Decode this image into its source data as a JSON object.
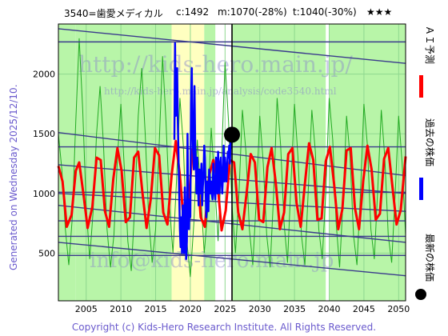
{
  "header": {
    "code_name": "3540=歯愛メディカル",
    "current": "c:1492",
    "mid": "m:1070(-28%)",
    "target": "t:1040(-30%)",
    "stars": "★★★"
  },
  "generated": "Generated on Wednesday 2025/12/10.",
  "copyright": "Copyright (c) Kids-Hero Research Institute. All Rights Reserved.",
  "watermarks": {
    "url": "http://kids-hero.main.jp/",
    "sub": "http://kids-hero.main.jp/analysis/code3540.html",
    "mail": "info@kids-hero.main.jp"
  },
  "legend": {
    "ai_forecast": "ＡＩ予測",
    "past_price": "過去の株価",
    "latest_price": "最新の株価"
  },
  "colors": {
    "ai_forecast": "#ff0000",
    "past_price": "#0000ff",
    "latest_price": "#000000",
    "green_line": "#22aa22",
    "band_line": "#3a3a8c",
    "zone_green": "#b8f5a8",
    "zone_yellow": "#ffffc0"
  },
  "chart_data": {
    "type": "line",
    "xlim": [
      2001.0,
      2051.0
    ],
    "ylim": [
      100,
      2420
    ],
    "x_ticks": [
      2005,
      2010,
      2015,
      2020,
      2025,
      2030,
      2035,
      2040,
      2045,
      2050
    ],
    "y_ticks": [
      500,
      1000,
      1500,
      2000
    ],
    "grid": true,
    "current_marker": {
      "x": 2026.0,
      "y": 1492
    },
    "zones": [
      {
        "x0": 2001.0,
        "x1": 2003.5,
        "kind": "green"
      },
      {
        "x0": 2003.5,
        "x1": 2014.3,
        "kind": "green"
      },
      {
        "x0": 2014.3,
        "x1": 2017.3,
        "kind": "green"
      },
      {
        "x0": 2017.3,
        "x1": 2022.0,
        "kind": "yellow"
      },
      {
        "x0": 2022.0,
        "x1": 2023.6,
        "kind": "green"
      },
      {
        "x0": 2026.0,
        "x1": 2039.5,
        "kind": "green"
      },
      {
        "x0": 2040.0,
        "x1": 2051.0,
        "kind": "green"
      }
    ],
    "band_lines": [
      {
        "x1": 2001.0,
        "y1": 2380,
        "x2": 2051.0,
        "y2": 2090
      },
      {
        "x1": 2001.0,
        "y1": 2270,
        "x2": 2051.0,
        "y2": 2270
      },
      {
        "x1": 2001.0,
        "y1": 1510,
        "x2": 2051.0,
        "y2": 1150
      },
      {
        "x1": 2001.0,
        "y1": 1390,
        "x2": 2051.0,
        "y2": 1390
      },
      {
        "x1": 2001.0,
        "y1": 1240,
        "x2": 2051.0,
        "y2": 1000
      },
      {
        "x1": 2001.0,
        "y1": 1010,
        "x2": 2051.0,
        "y2": 1010
      },
      {
        "x1": 2001.0,
        "y1": 1000,
        "x2": 2051.0,
        "y2": 850
      },
      {
        "x1": 2001.0,
        "y1": 900,
        "x2": 2051.0,
        "y2": 590
      },
      {
        "x1": 2001.0,
        "y1": 770,
        "x2": 2051.0,
        "y2": 770
      },
      {
        "x1": 2001.0,
        "y1": 640,
        "x2": 2051.0,
        "y2": 640
      },
      {
        "x1": 2001.0,
        "y1": 590,
        "x2": 2051.0,
        "y2": 310
      },
      {
        "x1": 2001.0,
        "y1": 480,
        "x2": 2051.0,
        "y2": 480
      }
    ],
    "series": [
      {
        "name": "ＡＩ予測",
        "style": "red",
        "x": [
          2001.0,
          2001.6,
          2002.2,
          2002.9,
          2003.5,
          2004.0,
          2004.6,
          2005.2,
          2005.9,
          2006.5,
          2007.1,
          2007.7,
          2008.3,
          2008.9,
          2009.5,
          2010.1,
          2010.7,
          2011.3,
          2011.9,
          2012.5,
          2013.1,
          2013.7,
          2014.3,
          2014.9,
          2015.5,
          2016.1,
          2016.7,
          2017.3,
          2017.9,
          2018.5,
          2019.1,
          2019.7,
          2020.3,
          2020.9,
          2021.5,
          2022.1,
          2022.7,
          2023.3,
          2023.9,
          2024.5,
          2025.1,
          2025.7,
          2026.3,
          2026.9,
          2027.5,
          2028.1,
          2028.7,
          2029.3,
          2029.9,
          2030.5,
          2031.1,
          2031.7,
          2032.3,
          2032.9,
          2033.5,
          2034.1,
          2034.7,
          2035.3,
          2035.9,
          2036.5,
          2037.1,
          2037.7,
          2038.3,
          2038.9,
          2039.5,
          2040.1,
          2040.7,
          2041.3,
          2041.9,
          2042.5,
          2043.1,
          2043.7,
          2044.3,
          2044.9,
          2045.5,
          2046.1,
          2046.7,
          2047.3,
          2047.9,
          2048.5,
          2049.1,
          2049.7,
          2050.3,
          2051.0
        ],
        "y": [
          1230,
          1100,
          720,
          820,
          1190,
          1260,
          1000,
          710,
          890,
          1300,
          1280,
          850,
          720,
          1120,
          1380,
          1190,
          760,
          800,
          1300,
          1350,
          1010,
          710,
          950,
          1380,
          1320,
          840,
          740,
          1150,
          1440,
          1150,
          720,
          850,
          1370,
          1280,
          800,
          720,
          1150,
          1280,
          1100,
          690,
          860,
          1280,
          1260,
          840,
          700,
          1000,
          1330,
          1260,
          780,
          760,
          1220,
          1380,
          1090,
          700,
          840,
          1330,
          1380,
          920,
          720,
          1080,
          1420,
          1280,
          780,
          790,
          1270,
          1390,
          1080,
          700,
          870,
          1360,
          1380,
          880,
          700,
          1110,
          1400,
          1200,
          780,
          830,
          1290,
          1380,
          1060,
          740,
          860,
          1310
        ]
      },
      {
        "name": "過去の株価",
        "style": "blue",
        "x": [
          2017.7,
          2017.8,
          2017.9,
          2018.0,
          2018.1,
          2018.2,
          2018.3,
          2018.4,
          2018.5,
          2018.6,
          2018.7,
          2018.8,
          2018.9,
          2019.0,
          2019.1,
          2019.2,
          2019.3,
          2019.4,
          2019.5,
          2019.6,
          2019.7,
          2019.8,
          2019.9,
          2020.0,
          2020.1,
          2020.2,
          2020.3,
          2020.4,
          2020.5,
          2020.6,
          2020.7,
          2020.8,
          2020.9,
          2021.0,
          2021.1,
          2021.2,
          2021.3,
          2021.4,
          2021.5,
          2021.6,
          2021.7,
          2021.8,
          2021.9,
          2022.0,
          2022.1,
          2022.2,
          2022.3,
          2022.4,
          2022.5,
          2022.6,
          2022.7,
          2022.8,
          2022.9,
          2023.0,
          2023.1,
          2023.2,
          2023.3,
          2023.4,
          2023.5,
          2023.6,
          2023.7,
          2023.8,
          2023.9,
          2024.0,
          2024.1,
          2024.2,
          2024.3,
          2024.4,
          2024.5,
          2024.6,
          2024.7,
          2024.8,
          2024.9,
          2025.0,
          2025.1,
          2025.2,
          2025.3,
          2025.4,
          2025.5,
          2025.6,
          2025.7,
          2025.8,
          2025.9,
          2026.0
        ],
        "y": [
          1450,
          2260,
          1650,
          1700,
          2050,
          1600,
          1300,
          1000,
          700,
          550,
          800,
          500,
          900,
          700,
          500,
          1050,
          800,
          450,
          600,
          1500,
          800,
          700,
          950,
          800,
          1750,
          2050,
          1600,
          1350,
          1200,
          1900,
          1400,
          1200,
          1000,
          1300,
          1050,
          900,
          1200,
          1100,
          1000,
          1250,
          900,
          1050,
          1150,
          1400,
          1300,
          1050,
          800,
          1100,
          1000,
          850,
          1200,
          1150,
          1000,
          1100,
          1000,
          950,
          1250,
          1100,
          1000,
          950,
          1300,
          1050,
          1000,
          1350,
          1150,
          1000,
          1250,
          1300,
          1100,
          1000,
          1150,
          1400,
          1100,
          1300,
          1200,
          1100,
          1200,
          1350,
          1300,
          1400,
          1250,
          1450,
          1380,
          1492
        ]
      },
      {
        "name": "green_wave",
        "style": "green",
        "x": [
          2001.0,
          2001.5,
          2002.0,
          2002.5,
          2003.0,
          2003.5,
          2004.0,
          2004.5,
          2005.0,
          2005.5,
          2006.0,
          2006.5,
          2007.0,
          2007.5,
          2008.0,
          2008.5,
          2009.0,
          2009.5,
          2010.0,
          2010.5,
          2011.0,
          2011.5,
          2012.0,
          2012.5,
          2013.0,
          2013.5,
          2014.0,
          2014.5,
          2015.0,
          2015.5,
          2016.0,
          2016.5,
          2017.0,
          2017.5,
          2018.0,
          2018.5,
          2019.0,
          2019.5,
          2020.0,
          2020.5,
          2021.0,
          2021.5,
          2022.0,
          2022.5,
          2023.0,
          2023.5,
          2024.0,
          2024.5,
          2025.0,
          2025.5,
          2026.0,
          2026.5,
          2027.0,
          2027.5,
          2028.0,
          2028.5,
          2029.0,
          2029.5,
          2030.0,
          2030.5,
          2031.0,
          2031.5,
          2032.0,
          2032.5,
          2033.0,
          2033.5,
          2034.0,
          2034.5,
          2035.0,
          2035.5,
          2036.0,
          2036.5,
          2037.0,
          2037.5,
          2038.0,
          2038.5,
          2039.0,
          2039.5,
          2040.0,
          2040.5,
          2041.0,
          2041.5,
          2042.0,
          2042.5,
          2043.0,
          2043.5,
          2044.0,
          2044.5,
          2045.0,
          2045.5,
          2046.0,
          2046.5,
          2047.0,
          2047.5,
          2048.0,
          2048.5,
          2049.0,
          2049.5,
          2050.0,
          2050.5,
          2051.0
        ],
        "y": [
          1500,
          1200,
          700,
          400,
          800,
          1600,
          2300,
          1700,
          900,
          450,
          850,
          1500,
          1900,
          1400,
          700,
          380,
          650,
          1300,
          1750,
          1200,
          600,
          350,
          900,
          1650,
          2050,
          1500,
          800,
          420,
          700,
          1400,
          2150,
          1600,
          900,
          500,
          1100,
          1800,
          1400,
          600,
          300,
          750,
          1450,
          1000,
          500,
          850,
          1550,
          1100,
          600,
          1300,
          2100,
          1600,
          900,
          500,
          1000,
          1700,
          1350,
          700,
          400,
          950,
          1650,
          1250,
          650,
          380,
          1000,
          1800,
          1400,
          750,
          420,
          1100,
          1750,
          1300,
          650,
          400,
          1050,
          1700,
          1350,
          700,
          450,
          1000,
          1800,
          1450,
          750,
          380,
          950,
          1650,
          1300,
          650,
          400,
          1000,
          1750,
          1400,
          700,
          450,
          1050,
          1700,
          1300,
          650,
          420,
          1000,
          1650,
          1250,
          650
        ]
      }
    ]
  }
}
